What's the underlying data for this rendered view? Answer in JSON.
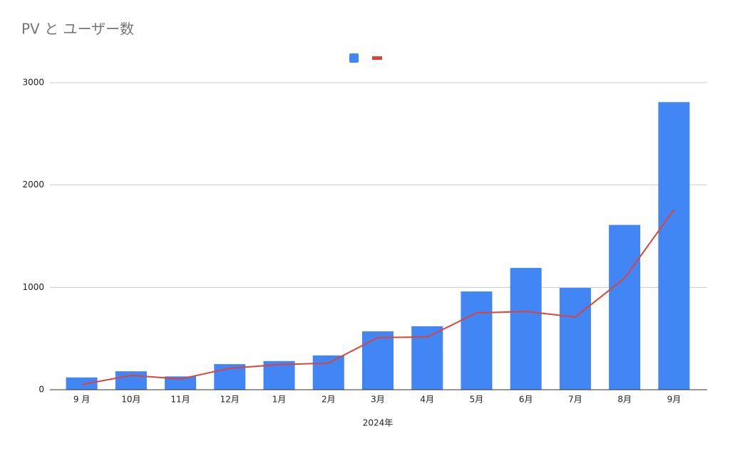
{
  "chart_data": {
    "type": "bar+line",
    "title": "PV と ユーザー数",
    "x_label": "2024年",
    "categories": [
      "9 月",
      "10月",
      "11月",
      "12月",
      "1月",
      "2月",
      "3月",
      "4月",
      "5月",
      "6月",
      "7月",
      "8月",
      "9月"
    ],
    "series": [
      {
        "type": "bar",
        "color": "#4285f4",
        "values": [
          120,
          180,
          130,
          250,
          280,
          335,
          570,
          620,
          960,
          1190,
          995,
          1610,
          2810
        ]
      },
      {
        "type": "line",
        "color": "#db4437",
        "values": [
          50,
          140,
          105,
          210,
          245,
          260,
          510,
          515,
          750,
          765,
          710,
          1090,
          1760
        ]
      }
    ],
    "ylim": [
      0,
      3000
    ],
    "yticks": [
      0,
      1000,
      2000,
      3000
    ],
    "grid": true
  }
}
